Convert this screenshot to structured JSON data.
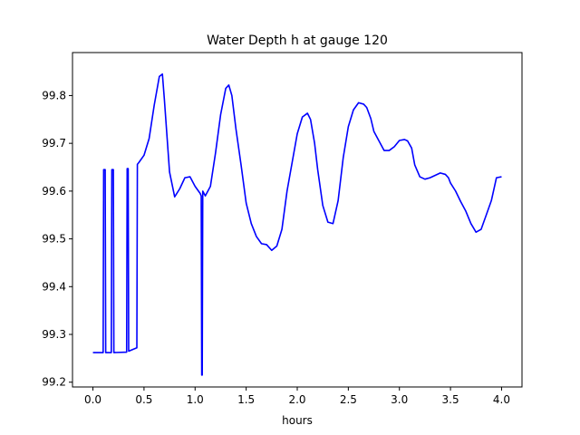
{
  "chart_data": {
    "type": "line",
    "title": "Water Depth h at gauge 120",
    "xlabel": "hours",
    "ylabel": "",
    "xlim": [
      -0.2,
      4.2
    ],
    "ylim": [
      99.19,
      99.89
    ],
    "xticks": [
      0.0,
      0.5,
      1.0,
      1.5,
      2.0,
      2.5,
      3.0,
      3.5,
      4.0
    ],
    "xtick_labels": [
      "0.0",
      "0.5",
      "1.0",
      "1.5",
      "2.0",
      "2.5",
      "3.0",
      "3.5",
      "4.0"
    ],
    "yticks": [
      99.2,
      99.3,
      99.4,
      99.5,
      99.6,
      99.7,
      99.8
    ],
    "ytick_labels": [
      "99.2",
      "99.3",
      "99.4",
      "99.5",
      "99.6",
      "99.7",
      "99.8"
    ],
    "grid": false,
    "series": [
      {
        "name": "",
        "color": "#0000ff",
        "x": [
          0.0,
          0.05,
          0.1,
          0.105,
          0.12,
          0.125,
          0.18,
          0.185,
          0.2,
          0.205,
          0.33,
          0.335,
          0.345,
          0.35,
          0.43,
          0.435,
          0.45,
          0.5,
          0.55,
          0.6,
          0.65,
          0.68,
          0.7,
          0.75,
          0.8,
          0.85,
          0.9,
          0.95,
          1.0,
          1.05,
          1.06,
          1.065,
          1.07,
          1.075,
          1.1,
          1.15,
          1.2,
          1.25,
          1.3,
          1.33,
          1.36,
          1.4,
          1.45,
          1.5,
          1.55,
          1.6,
          1.65,
          1.7,
          1.75,
          1.8,
          1.85,
          1.9,
          1.95,
          2.0,
          2.05,
          2.1,
          2.13,
          2.17,
          2.2,
          2.25,
          2.3,
          2.35,
          2.4,
          2.45,
          2.5,
          2.55,
          2.6,
          2.65,
          2.68,
          2.72,
          2.75,
          2.8,
          2.85,
          2.9,
          2.95,
          3.0,
          3.05,
          3.08,
          3.12,
          3.15,
          3.2,
          3.25,
          3.3,
          3.35,
          3.4,
          3.45,
          3.48,
          3.5,
          3.55,
          3.6,
          3.65,
          3.7,
          3.75,
          3.8,
          3.85,
          3.9,
          3.95,
          4.0
        ],
        "y": [
          99.262,
          99.262,
          99.262,
          99.645,
          99.645,
          99.262,
          99.262,
          99.645,
          99.645,
          99.262,
          99.263,
          99.647,
          99.647,
          99.265,
          99.272,
          99.656,
          99.66,
          99.675,
          99.71,
          99.78,
          99.84,
          99.845,
          99.79,
          99.64,
          99.588,
          99.605,
          99.628,
          99.63,
          99.61,
          99.595,
          99.59,
          99.215,
          99.215,
          99.6,
          99.59,
          99.61,
          99.68,
          99.76,
          99.815,
          99.822,
          99.8,
          99.73,
          99.655,
          99.575,
          99.532,
          99.505,
          99.49,
          99.488,
          99.476,
          99.485,
          99.52,
          99.6,
          99.66,
          99.72,
          99.755,
          99.763,
          99.75,
          99.7,
          99.645,
          99.57,
          99.535,
          99.532,
          99.58,
          99.67,
          99.735,
          99.77,
          99.785,
          99.782,
          99.775,
          99.752,
          99.725,
          99.705,
          99.685,
          99.685,
          99.693,
          99.706,
          99.708,
          99.705,
          99.69,
          99.655,
          99.63,
          99.625,
          99.628,
          99.633,
          99.638,
          99.635,
          99.628,
          99.617,
          99.6,
          99.578,
          99.558,
          99.532,
          99.514,
          99.52,
          99.55,
          99.58,
          99.628,
          99.63
        ]
      }
    ]
  }
}
